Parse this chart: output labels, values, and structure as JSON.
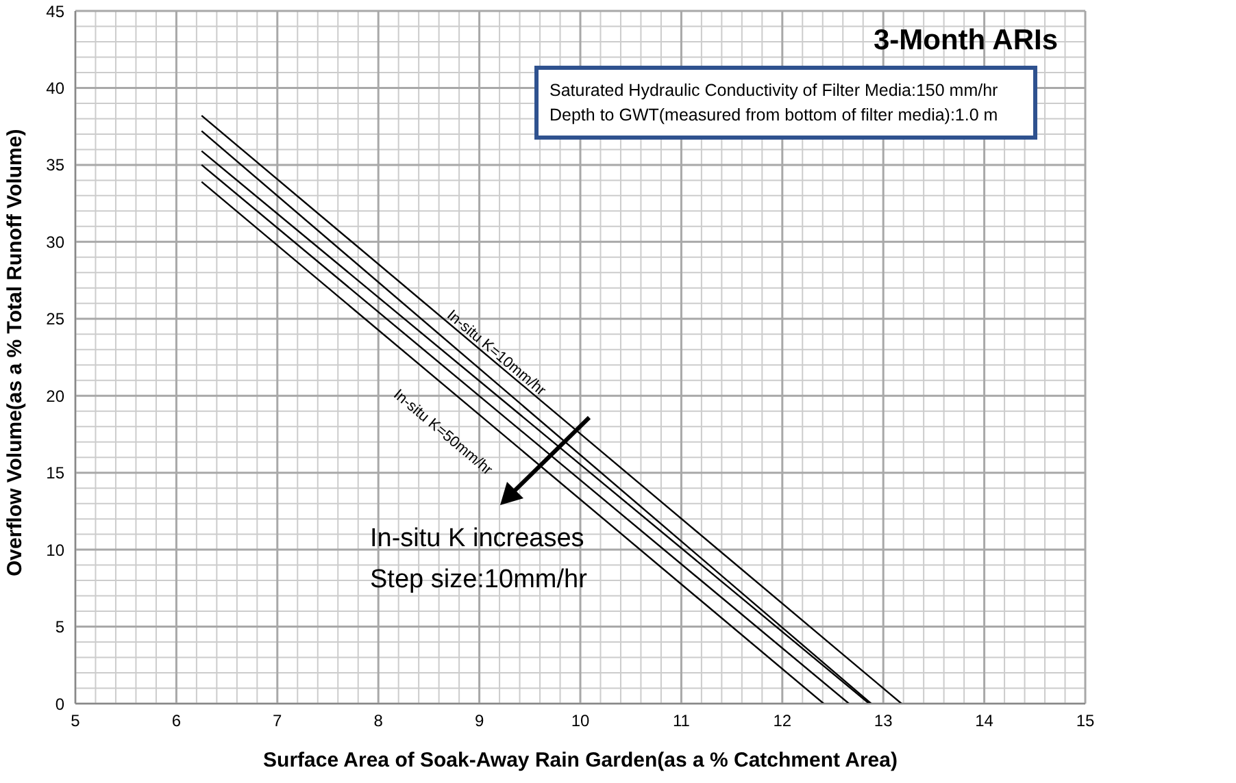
{
  "chart_data": {
    "type": "line",
    "title": "3-Month ARIs",
    "xlabel": "Surface Area of Soak-Away Rain Garden(as a % Catchment Area)",
    "ylabel": "Overflow Volume(as a % Total Runoff Volume)",
    "series": [
      {
        "color": "#000000",
        "x": [
          6.25,
          13.18
        ],
        "values": [
          38.2,
          0
        ]
      },
      {
        "color": "#000000",
        "x": [
          6.25,
          12.88
        ],
        "values": [
          37.2,
          0
        ]
      },
      {
        "color": "#000000",
        "x": [
          6.25,
          12.86
        ],
        "values": [
          35.9,
          0
        ]
      },
      {
        "color": "#000000",
        "x": [
          6.25,
          12.66
        ],
        "values": [
          35.0,
          0
        ]
      },
      {
        "color": "#000000",
        "x": [
          6.25,
          12.41
        ],
        "values": [
          33.9,
          0
        ]
      }
    ],
    "annotations": [
      "Saturated Hydraulic Conductivity of Filter Media:150 mm/hr",
      "Depth to GWT(measured from bottom of filter media):1.0 m",
      "In-situ K increases",
      "Step size:10mm/hr",
      "In-situ K=10mm/hr",
      "In-situ K=50mm/hr"
    ],
    "xlim": [
      5,
      15
    ],
    "xticks": [
      5,
      6,
      7,
      8,
      9,
      10,
      11,
      12,
      13,
      14,
      15
    ],
    "ylim": [
      0,
      45
    ],
    "yticks": [
      0,
      5,
      10,
      15,
      20,
      25,
      30,
      35,
      40,
      45
    ],
    "grid": true,
    "marker": "none",
    "line_style": "solid"
  }
}
